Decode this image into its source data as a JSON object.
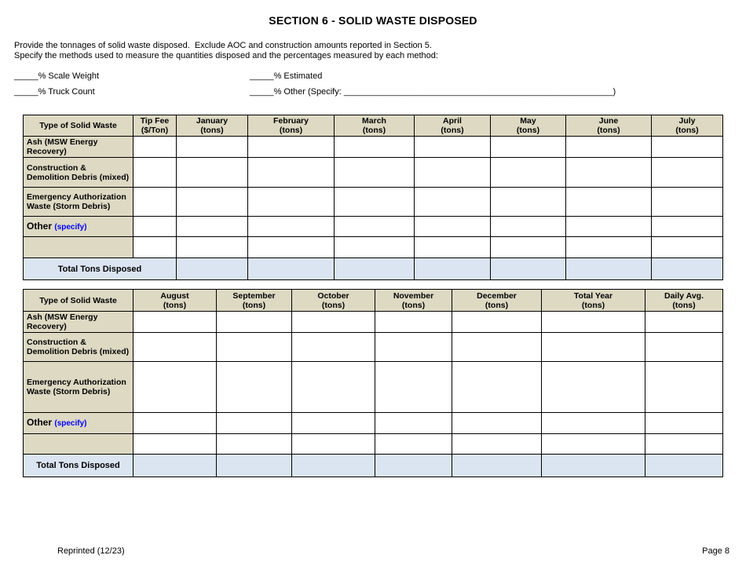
{
  "header": {
    "title": "SECTION 6 - SOLID WASTE DISPOSED",
    "instructions_line1": "Provide the tonnages of solid waste disposed.  Exclude AOC and construction amounts reported in Section 5.",
    "instructions_line2": "Specify the methods used to measure the quantities disposed and the percentages measured by each method:"
  },
  "methods": {
    "blank": "_____",
    "scale_weight_label": "% Scale Weight",
    "estimated_label": "% Estimated",
    "truck_count_label": "% Truck Count",
    "other_label": "% Other (Specify: ",
    "other_specify_line": "________________________________________________________",
    "other_close_paren": ")"
  },
  "tables": [
    {
      "name": "solid-waste-jan-jul",
      "columns": [
        {
          "line1": "Type of Solid Waste",
          "line2": ""
        },
        {
          "line1": "Tip Fee",
          "line2": "($/Ton)"
        },
        {
          "line1": "January",
          "line2": "(tons)"
        },
        {
          "line1": "February",
          "line2": "(tons)"
        },
        {
          "line1": "March",
          "line2": "(tons)"
        },
        {
          "line1": "April",
          "line2": "(tons)"
        },
        {
          "line1": "May",
          "line2": "(tons)"
        },
        {
          "line1": "June",
          "line2": "(tons)"
        },
        {
          "line1": "July",
          "line2": "(tons)"
        }
      ],
      "rows": [
        {
          "id": "ash",
          "label": "Ash (MSW Energy Recovery)",
          "specify": ""
        },
        {
          "id": "construction-demolition-debris",
          "label": "Construction & Demolition Debris (mixed)",
          "specify": ""
        },
        {
          "id": "emergency-authorization-waste",
          "label": "Emergency Authorization Waste (Storm Debris)",
          "specify": ""
        },
        {
          "id": "other",
          "label": "Other",
          "specify": "(specify)"
        },
        {
          "id": "blank",
          "label": "",
          "specify": ""
        }
      ],
      "total_label": "Total Tons Disposed"
    },
    {
      "name": "solid-waste-aug-dec",
      "columns": [
        {
          "line1": "Type of Solid Waste",
          "line2": ""
        },
        {
          "line1": "August",
          "line2": "(tons)"
        },
        {
          "line1": "September",
          "line2": "(tons)"
        },
        {
          "line1": "October",
          "line2": "(tons)"
        },
        {
          "line1": "November",
          "line2": "(tons)"
        },
        {
          "line1": "December",
          "line2": "(tons)"
        },
        {
          "line1": "Total Year",
          "line2": "(tons)"
        },
        {
          "line1": "Daily Avg.",
          "line2": "(tons)"
        }
      ],
      "rows": [
        {
          "id": "ash",
          "label": "Ash (MSW Energy Recovery)",
          "specify": ""
        },
        {
          "id": "construction-demolition-debris",
          "label": "Construction & Demolition Debris (mixed)",
          "specify": ""
        },
        {
          "id": "emergency-authorization-waste",
          "label": "Emergency Authorization Waste (Storm Debris)",
          "specify": ""
        },
        {
          "id": "other",
          "label": "Other",
          "specify": "(specify)"
        },
        {
          "id": "blank",
          "label": "",
          "specify": ""
        }
      ],
      "total_label": "Total Tons Disposed"
    }
  ],
  "footer": {
    "left": "Reprinted (12/23)",
    "right": "Page 8"
  },
  "colors": {
    "header_bg": "#ddd9c3",
    "total_row_bg": "#dbe5f1",
    "specify_text": "#0000ff",
    "border": "#000000"
  }
}
